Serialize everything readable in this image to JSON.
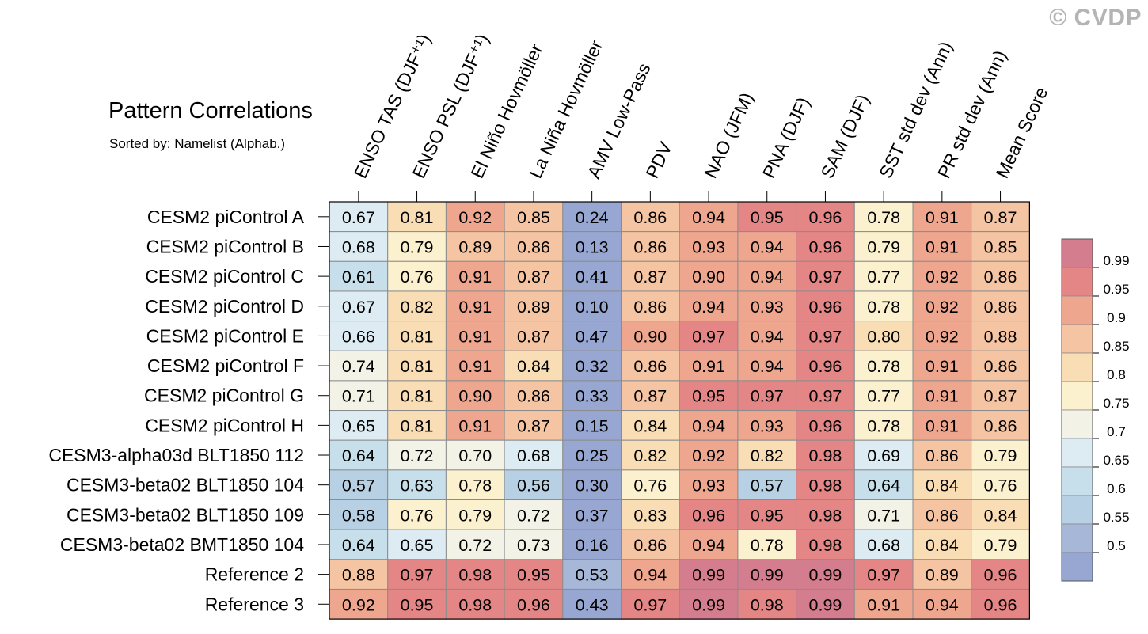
{
  "watermark": "© CVDP",
  "chart_data": {
    "type": "heatmap",
    "title": "Pattern Correlations",
    "subtitle": "Sorted by: Namelist (Alphab.)",
    "columns": [
      "ENSO TAS (DJF⁺¹)",
      "ENSO PSL (DJF⁺¹)",
      "El Niño Hovmöller",
      "La Niña Hovmöller",
      "AMV Low-Pass",
      "PDV",
      "NAO (JFM)",
      "PNA (DJF)",
      "SAM (DJF)",
      "SST std dev (Ann)",
      "PR std dev (Ann)",
      "Mean Score"
    ],
    "rows": [
      "CESM2 piControl A",
      "CESM2 piControl B",
      "CESM2 piControl C",
      "CESM2 piControl D",
      "CESM2 piControl E",
      "CESM2 piControl F",
      "CESM2 piControl G",
      "CESM2 piControl H",
      "CESM3-alpha03d BLT1850 112",
      "CESM3-beta02 BLT1850 104",
      "CESM3-beta02 BLT1850 109",
      "CESM3-beta02 BMT1850 104",
      "Reference 2",
      "Reference 3"
    ],
    "values": [
      [
        "0.67",
        "0.81",
        "0.92",
        "0.85",
        "0.24",
        "0.86",
        "0.94",
        "0.95",
        "0.96",
        "0.78",
        "0.91",
        "0.87"
      ],
      [
        "0.68",
        "0.79",
        "0.89",
        "0.86",
        "0.13",
        "0.86",
        "0.93",
        "0.94",
        "0.96",
        "0.79",
        "0.91",
        "0.85"
      ],
      [
        "0.61",
        "0.76",
        "0.91",
        "0.87",
        "0.41",
        "0.87",
        "0.90",
        "0.94",
        "0.97",
        "0.77",
        "0.92",
        "0.86"
      ],
      [
        "0.67",
        "0.82",
        "0.91",
        "0.89",
        "0.10",
        "0.86",
        "0.94",
        "0.93",
        "0.96",
        "0.78",
        "0.92",
        "0.86"
      ],
      [
        "0.66",
        "0.81",
        "0.91",
        "0.87",
        "0.47",
        "0.90",
        "0.97",
        "0.94",
        "0.97",
        "0.80",
        "0.92",
        "0.88"
      ],
      [
        "0.74",
        "0.81",
        "0.91",
        "0.84",
        "0.32",
        "0.86",
        "0.91",
        "0.94",
        "0.96",
        "0.78",
        "0.91",
        "0.86"
      ],
      [
        "0.71",
        "0.81",
        "0.90",
        "0.86",
        "0.33",
        "0.87",
        "0.95",
        "0.97",
        "0.97",
        "0.77",
        "0.91",
        "0.87"
      ],
      [
        "0.65",
        "0.81",
        "0.91",
        "0.87",
        "0.15",
        "0.84",
        "0.94",
        "0.93",
        "0.96",
        "0.78",
        "0.91",
        "0.86"
      ],
      [
        "0.64",
        "0.72",
        "0.70",
        "0.68",
        "0.25",
        "0.82",
        "0.92",
        "0.82",
        "0.98",
        "0.69",
        "0.86",
        "0.79"
      ],
      [
        "0.57",
        "0.63",
        "0.78",
        "0.56",
        "0.30",
        "0.76",
        "0.93",
        "0.57",
        "0.98",
        "0.64",
        "0.84",
        "0.76"
      ],
      [
        "0.58",
        "0.76",
        "0.79",
        "0.72",
        "0.37",
        "0.83",
        "0.96",
        "0.95",
        "0.98",
        "0.71",
        "0.86",
        "0.84"
      ],
      [
        "0.64",
        "0.65",
        "0.72",
        "0.73",
        "0.16",
        "0.86",
        "0.94",
        "0.78",
        "0.98",
        "0.68",
        "0.84",
        "0.79"
      ],
      [
        "0.88",
        "0.97",
        "0.98",
        "0.95",
        "0.53",
        "0.94",
        "0.99",
        "0.99",
        "0.99",
        "0.97",
        "0.89",
        "0.96"
      ],
      [
        "0.92",
        "0.95",
        "0.98",
        "0.96",
        "0.43",
        "0.97",
        "0.99",
        "0.98",
        "0.99",
        "0.91",
        "0.94",
        "0.96"
      ]
    ],
    "colorbar": {
      "labels": [
        "0.99",
        "0.95",
        "0.9",
        "0.85",
        "0.8",
        "0.75",
        "0.7",
        "0.65",
        "0.6",
        "0.55",
        "0.5"
      ],
      "colors": [
        "#d47d8f",
        "#e38685",
        "#eea68f",
        "#f5c4a2",
        "#f9ddb5",
        "#fcf1cf",
        "#f2f2e6",
        "#ddecf2",
        "#c6dfea",
        "#b7d0e3",
        "#a6b7d8",
        "#97a7d1"
      ],
      "thresholds": [
        0.99,
        0.95,
        0.9,
        0.85,
        0.8,
        0.75,
        0.7,
        0.65,
        0.6,
        0.55,
        0.5
      ]
    }
  }
}
